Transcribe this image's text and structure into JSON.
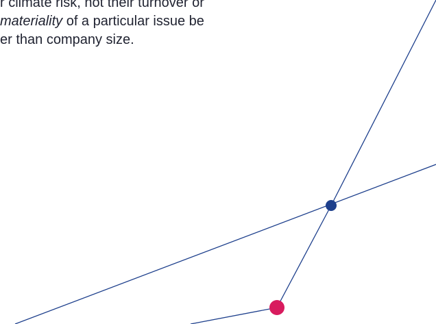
{
  "paragraph": {
    "line1": "r climate risk, not their turnover or",
    "line2_emphasis": "materiality",
    "line2_rest": " of a particular issue be",
    "line3": "er than company size."
  },
  "colors": {
    "line": "#1d3f8c",
    "node_blue": "#1d3f8c",
    "node_pink": "#d81b5e",
    "text": "#1f2230"
  }
}
